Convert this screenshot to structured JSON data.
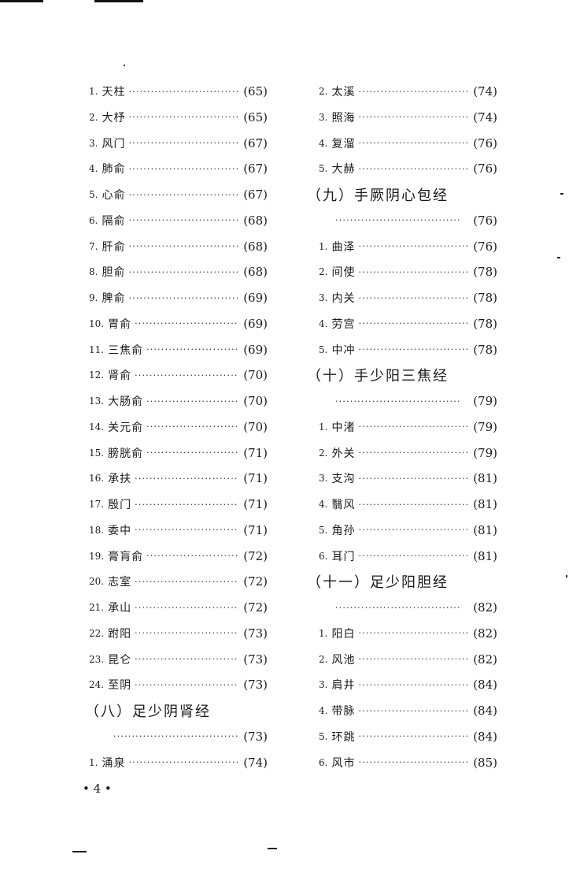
{
  "left_column": [
    {
      "type": "entry",
      "num": "1.",
      "name": "天柱",
      "page": "(65)"
    },
    {
      "type": "entry",
      "num": "2.",
      "name": "大杼",
      "page": "(65)"
    },
    {
      "type": "entry",
      "num": "3.",
      "name": "风门",
      "page": "(67)"
    },
    {
      "type": "entry",
      "num": "4.",
      "name": "肺俞",
      "page": "(67)"
    },
    {
      "type": "entry",
      "num": "5.",
      "name": "心俞",
      "page": "(67)"
    },
    {
      "type": "entry",
      "num": "6.",
      "name": "隔俞",
      "page": "(68)"
    },
    {
      "type": "entry",
      "num": "7.",
      "name": "肝俞",
      "page": "(68)"
    },
    {
      "type": "entry",
      "num": "8.",
      "name": "胆俞",
      "page": "(68)"
    },
    {
      "type": "entry",
      "num": "9.",
      "name": "脾俞",
      "page": "(69)"
    },
    {
      "type": "entry",
      "num": "10.",
      "name": "胃俞",
      "page": "(69)"
    },
    {
      "type": "entry",
      "num": "11.",
      "name": "三焦俞",
      "page": "(69)"
    },
    {
      "type": "entry",
      "num": "12.",
      "name": "肾俞",
      "page": "(70)"
    },
    {
      "type": "entry",
      "num": "13.",
      "name": "大肠俞",
      "page": "(70)"
    },
    {
      "type": "entry",
      "num": "14.",
      "name": "关元俞",
      "page": "(70)"
    },
    {
      "type": "entry",
      "num": "15.",
      "name": "膀胱俞",
      "page": "(71)"
    },
    {
      "type": "entry",
      "num": "16.",
      "name": "承扶",
      "page": "(71)"
    },
    {
      "type": "entry",
      "num": "17.",
      "name": "殷门",
      "page": "(71)"
    },
    {
      "type": "entry",
      "num": "18.",
      "name": "委中",
      "page": "(71)"
    },
    {
      "type": "entry",
      "num": "19.",
      "name": "膏肓俞",
      "page": "(72)"
    },
    {
      "type": "entry",
      "num": "20.",
      "name": "志室",
      "page": "(72)"
    },
    {
      "type": "entry",
      "num": "21.",
      "name": "承山",
      "page": "(72)"
    },
    {
      "type": "entry",
      "num": "22.",
      "name": "跗阳",
      "page": "(73)"
    },
    {
      "type": "entry",
      "num": "23.",
      "name": "昆仑",
      "page": "(73)"
    },
    {
      "type": "entry",
      "num": "24.",
      "name": "至阴",
      "page": "(73)"
    },
    {
      "type": "heading",
      "name": "（八）足少阴肾经"
    },
    {
      "type": "cont",
      "page": "(73)"
    },
    {
      "type": "entry",
      "num": "1.",
      "name": "涌泉",
      "page": "(74)"
    }
  ],
  "right_column": [
    {
      "type": "entry",
      "num": "2.",
      "name": "太溪",
      "page": "(74)"
    },
    {
      "type": "entry",
      "num": "3.",
      "name": "照海",
      "page": "(74)"
    },
    {
      "type": "entry",
      "num": "4.",
      "name": "复溜",
      "page": "(76)"
    },
    {
      "type": "entry",
      "num": "5.",
      "name": "大赫",
      "page": "(76)"
    },
    {
      "type": "heading",
      "name": "（九）手厥阴心包经"
    },
    {
      "type": "cont",
      "page": "(76)"
    },
    {
      "type": "entry",
      "num": "1.",
      "name": "曲泽",
      "page": "(76)"
    },
    {
      "type": "entry",
      "num": "2.",
      "name": "间使",
      "page": "(78)"
    },
    {
      "type": "entry",
      "num": "3.",
      "name": "内关",
      "page": "(78)"
    },
    {
      "type": "entry",
      "num": "4.",
      "name": "劳宫",
      "page": "(78)"
    },
    {
      "type": "entry",
      "num": "5.",
      "name": "中冲",
      "page": "(78)"
    },
    {
      "type": "heading",
      "name": "（十）手少阳三焦经"
    },
    {
      "type": "cont",
      "page": "(79)"
    },
    {
      "type": "entry",
      "num": "1.",
      "name": "中渚",
      "page": "(79)"
    },
    {
      "type": "entry",
      "num": "2.",
      "name": "外关",
      "page": "(79)"
    },
    {
      "type": "entry",
      "num": "3.",
      "name": "支沟",
      "page": "(81)"
    },
    {
      "type": "entry",
      "num": "4.",
      "name": "翳风",
      "page": "(81)"
    },
    {
      "type": "entry",
      "num": "5.",
      "name": "角孙",
      "page": "(81)"
    },
    {
      "type": "entry",
      "num": "6.",
      "name": "耳门",
      "page": "(81)"
    },
    {
      "type": "heading",
      "name": "（十一）足少阳胆经"
    },
    {
      "type": "cont",
      "page": "(82)"
    },
    {
      "type": "entry",
      "num": "1.",
      "name": "阳白",
      "page": "(82)"
    },
    {
      "type": "entry",
      "num": "2.",
      "name": "风池",
      "page": "(82)"
    },
    {
      "type": "entry",
      "num": "3.",
      "name": "肩井",
      "page": "(84)"
    },
    {
      "type": "entry",
      "num": "4.",
      "name": "带脉",
      "page": "(84)"
    },
    {
      "type": "entry",
      "num": "5.",
      "name": "环跳",
      "page": "(84)"
    },
    {
      "type": "entry",
      "num": "6.",
      "name": "风市",
      "page": "(85)"
    }
  ],
  "leader_dots": "··································",
  "footer": {
    "page_number": "• 4 •"
  }
}
